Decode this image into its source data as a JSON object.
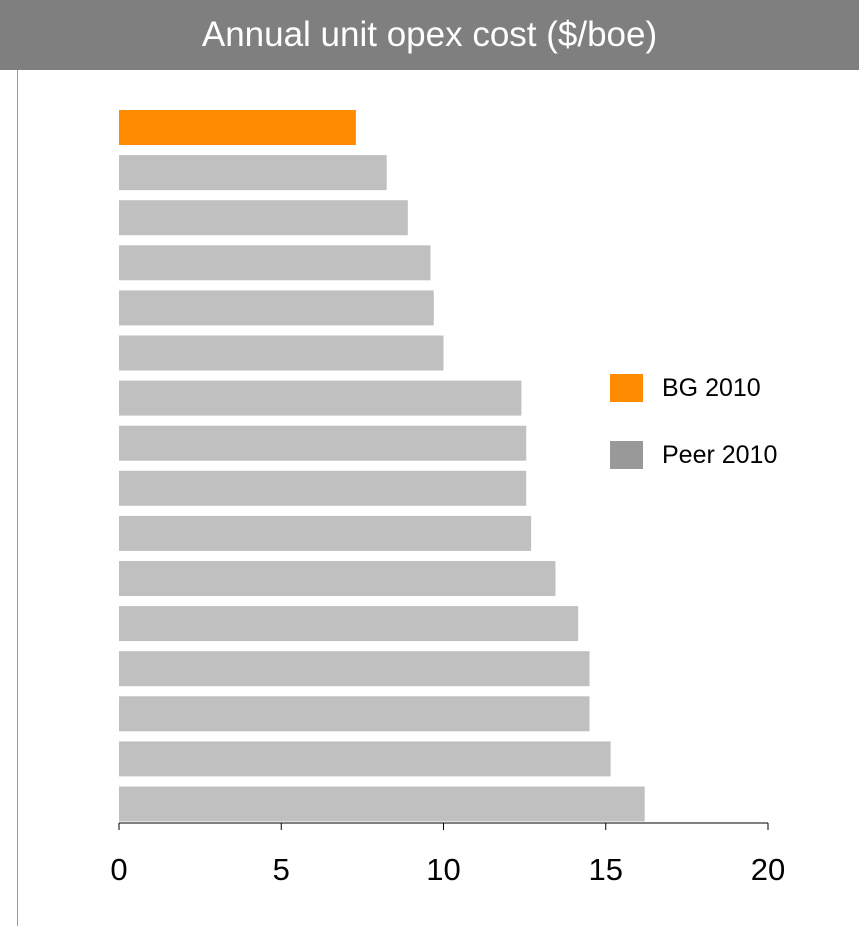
{
  "title": "Annual unit opex cost ($/boe)",
  "legend": [
    {
      "label": "BG 2010",
      "color": "#ff8c00"
    },
    {
      "label": "Peer 2010",
      "color": "#999999"
    }
  ],
  "colors": {
    "header_bg": "#7f7f7f",
    "bg_bar": "#c0c0c0",
    "peer_bar": "#c0c0c0",
    "bg_highlight": "#ff8c00"
  },
  "chart_data": {
    "type": "bar",
    "orientation": "horizontal",
    "title": "Annual unit opex cost ($/boe)",
    "xlim": [
      0,
      20
    ],
    "xticks": [
      0,
      5,
      10,
      15,
      20
    ],
    "grid": false,
    "legend_position": "right",
    "series": [
      {
        "name": "BG 2010",
        "values": [
          7.3,
          null,
          null,
          null,
          null,
          null,
          null,
          null,
          null,
          null,
          null,
          null,
          null,
          null,
          null,
          null
        ]
      },
      {
        "name": "Peer 2010",
        "values": [
          null,
          8.25,
          8.9,
          9.6,
          9.7,
          10.0,
          12.4,
          12.55,
          12.55,
          12.7,
          13.45,
          14.15,
          14.5,
          14.5,
          15.15,
          16.2
        ]
      }
    ]
  }
}
